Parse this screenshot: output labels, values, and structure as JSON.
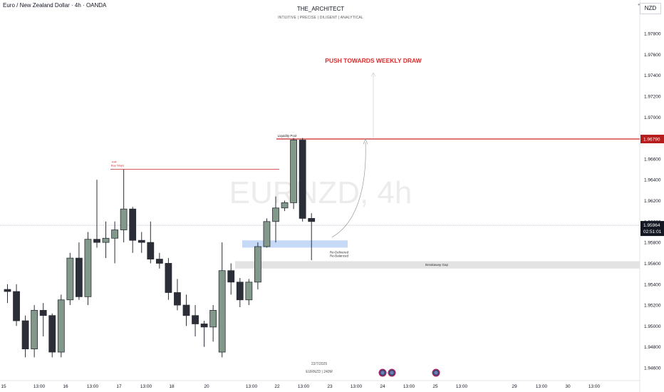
{
  "header": {
    "symbol_title": "Euro / New Zealand Dollar · 4h · OANDA",
    "author": "THE_ARCHITECT",
    "tagline": "INTUITIVE | PRECISE | DILIGENT | ANALYTICAL",
    "currency": "NZD"
  },
  "watermark": "EURNZD, 4h",
  "footer": {
    "date": "22/7/2025",
    "symbol_tf": "EURNZD | 240M"
  },
  "chart_data": {
    "type": "candlestick",
    "y_axis": {
      "range": [
        1.945,
        1.989
      ],
      "ticks": [
        "1.97800",
        "1.97600",
        "1.97400",
        "1.97200",
        "1.97000",
        "1.96800",
        "1.96600",
        "1.96400",
        "1.96200",
        "1.96000",
        "1.95800",
        "1.95600",
        "1.95400",
        "1.95200",
        "1.95000",
        "1.94800",
        "1.94600"
      ],
      "tick_values": [
        1.978,
        1.976,
        1.974,
        1.972,
        1.97,
        1.968,
        1.966,
        1.964,
        1.962,
        1.96,
        1.958,
        1.956,
        1.954,
        1.952,
        1.95,
        1.948,
        1.946
      ]
    },
    "x_axis": {
      "ticks": [
        "15",
        "13:00",
        "16",
        "13:00",
        "17",
        "13:00",
        "18",
        "20",
        "13:00",
        "22",
        "13:00",
        "23",
        "13:00",
        "24",
        "13:00",
        "25",
        "13:00",
        "29",
        "13:00",
        "30",
        "13:00"
      ]
    },
    "colors": {
      "bull": "#82988a",
      "bear": "#2b2e36",
      "level": "#c2185b",
      "accent": "#c62828"
    },
    "candles": [
      [
        1.9535,
        1.954,
        1.9522,
        1.9533
      ],
      [
        1.9533,
        1.954,
        1.95,
        1.9505
      ],
      [
        1.9505,
        1.951,
        1.947,
        1.9478
      ],
      [
        1.9478,
        1.952,
        1.947,
        1.9515
      ],
      [
        1.9515,
        1.9522,
        1.949,
        1.951
      ],
      [
        1.951,
        1.9512,
        1.947,
        1.9475
      ],
      [
        1.9475,
        1.953,
        1.947,
        1.9525
      ],
      [
        1.9525,
        1.957,
        1.952,
        1.9565
      ],
      [
        1.9565,
        1.958,
        1.9525,
        1.9528
      ],
      [
        1.9528,
        1.959,
        1.952,
        1.9583
      ],
      [
        1.9583,
        1.964,
        1.9575,
        1.958
      ],
      [
        1.958,
        1.96,
        1.9565,
        1.9584
      ],
      [
        1.9584,
        1.96,
        1.956,
        1.9592
      ],
      [
        1.9592,
        1.965,
        1.958,
        1.9612
      ],
      [
        1.9612,
        1.9614,
        1.957,
        1.9582
      ],
      [
        1.9582,
        1.959,
        1.957,
        1.958
      ],
      [
        1.958,
        1.96,
        1.956,
        1.9564
      ],
      [
        1.9564,
        1.957,
        1.9555,
        1.956
      ],
      [
        1.956,
        1.9565,
        1.9525,
        1.9532
      ],
      [
        1.9532,
        1.9545,
        1.9515,
        1.952
      ],
      [
        1.952,
        1.953,
        1.95,
        1.951
      ],
      [
        1.951,
        1.952,
        1.949,
        1.9502
      ],
      [
        1.9502,
        1.9505,
        1.948,
        1.9499
      ],
      [
        1.9499,
        1.952,
        1.9485,
        1.9515
      ],
      [
        1.9475,
        1.958,
        1.947,
        1.9553
      ],
      [
        1.9553,
        1.956,
        1.953,
        1.9542
      ],
      [
        1.9542,
        1.9546,
        1.9518,
        1.9525
      ],
      [
        1.9525,
        1.9545,
        1.952,
        1.9542
      ],
      [
        1.9542,
        1.958,
        1.9535,
        1.9576
      ],
      [
        1.9576,
        1.9603,
        1.9575,
        1.96
      ],
      [
        1.96,
        1.9624,
        1.958,
        1.9613
      ],
      [
        1.9613,
        1.962,
        1.961,
        1.9618
      ],
      [
        1.9618,
        1.968,
        1.9612,
        1.9678
      ],
      [
        1.9678,
        1.968,
        1.96,
        1.9603
      ],
      [
        1.9603,
        1.9608,
        1.9563,
        1.96
      ]
    ],
    "levels": [
      {
        "label": "Liquidity Pool",
        "price": 1.9679,
        "price_label": "1.96790"
      },
      {
        "label": "Buy Stops",
        "sublabel": "+H4",
        "price": 1.965
      },
      {
        "label": "Current",
        "price": 1.95964,
        "price_label": "1.95964",
        "countdown": "02:51:01"
      }
    ],
    "zones": [
      {
        "label": "Re-Delivered",
        "sublabel": "Re-Balanced",
        "top": 1.9582,
        "bottom": 1.9575,
        "color": "#bcd3f7"
      },
      {
        "label": "Breakaway Gap",
        "top": 1.9562,
        "bottom": 1.9555,
        "color": "#e3e3e3"
      }
    ],
    "annotation": "PUSH TOWARDS WEEKLY DRAW"
  }
}
